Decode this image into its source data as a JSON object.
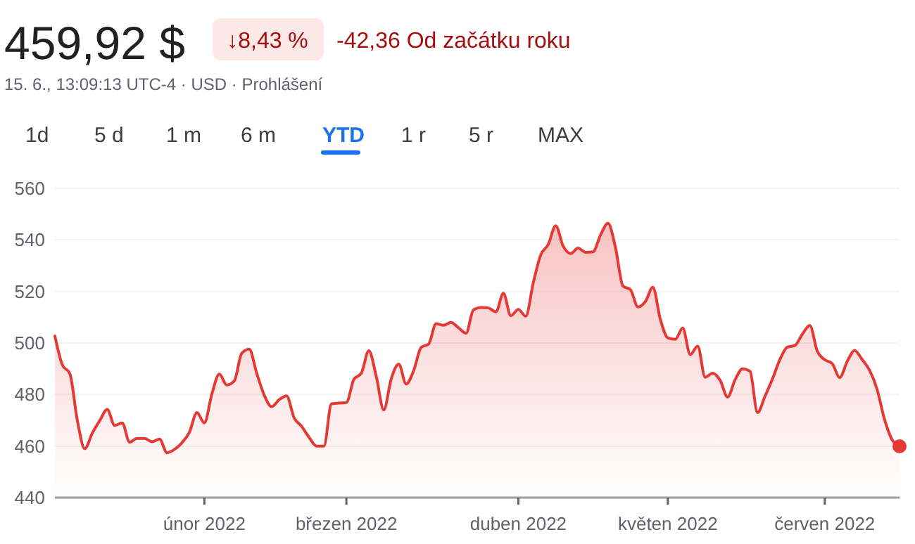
{
  "chart_data": {
    "type": "area",
    "title": "459,92 $",
    "subtitle": "15. 6., 13:09:13 UTC-4 · USD · Prohlášení",
    "annotations": [
      "↓8,43 %",
      "-42,36 Od začátku roku",
      "1d",
      "5 d",
      "1 m",
      "6 m",
      "YTD",
      "1 r",
      "5 r",
      "MAX"
    ],
    "categories": [
      null,
      null,
      null,
      null,
      null,
      null,
      null,
      null,
      null,
      null,
      null,
      null,
      null,
      null,
      null,
      null,
      null,
      null,
      null,
      null,
      "únor 2022",
      null,
      null,
      null,
      null,
      null,
      null,
      null,
      null,
      null,
      null,
      null,
      null,
      null,
      null,
      null,
      null,
      null,
      null,
      "březen 2022",
      null,
      null,
      null,
      null,
      null,
      null,
      null,
      null,
      null,
      null,
      null,
      null,
      null,
      null,
      null,
      null,
      null,
      null,
      null,
      null,
      null,
      null,
      "duben 2022",
      null,
      null,
      null,
      null,
      null,
      null,
      null,
      null,
      null,
      null,
      null,
      null,
      null,
      null,
      null,
      null,
      null,
      null,
      null,
      "květen 2022",
      null,
      null,
      null,
      null,
      null,
      null,
      null,
      null,
      null,
      null,
      null,
      null,
      null,
      null,
      null,
      null,
      null,
      null,
      null,
      null,
      "červen 2022",
      null,
      null,
      null,
      null,
      null,
      null,
      null,
      null,
      null,
      null
    ],
    "series": [
      {
        "color": "#e53935",
        "values": [
          502.7,
          491.5,
          488.1,
          470,
          459,
          465,
          469.9,
          474.2,
          468,
          469,
          461.5,
          463,
          463,
          461.7,
          462.7,
          457.4,
          458.7,
          461.3,
          465.4,
          473,
          469,
          480.2,
          487.9,
          483.7,
          485.3,
          496,
          497.6,
          488.3,
          479.8,
          475.3,
          478,
          479.5,
          471,
          467.7,
          463.4,
          460,
          460,
          476.4,
          476.7,
          476.9,
          485.9,
          488.3,
          497,
          487,
          474,
          486.1,
          491.8,
          484.1,
          489.3,
          498.3,
          499.6,
          507.5,
          506.9,
          508,
          505.9,
          503.8,
          512.9,
          513.8,
          513.6,
          512.1,
          519.3,
          510.6,
          513,
          510.4,
          523.3,
          534.2,
          538.2,
          545.5,
          537.6,
          534.7,
          536.8,
          535.2,
          535.4,
          541.9,
          546.4,
          537,
          522.1,
          520.7,
          514,
          516.1,
          521.6,
          509.2,
          502,
          501.4,
          505.8,
          495.5,
          498.8,
          486.7,
          488.3,
          485.5,
          479,
          485.7,
          490,
          489,
          473,
          479.3,
          486,
          493.6,
          498.4,
          499,
          503.4,
          506.8,
          496.8,
          493.5,
          492,
          486.6,
          492.8,
          497.1,
          493.6,
          489.4,
          482,
          470.3,
          462.5,
          459.9
        ]
      }
    ],
    "ylim": [
      440,
      560
    ],
    "yticks": [
      440,
      460,
      480,
      500,
      520,
      540,
      560
    ],
    "grid": "y"
  }
}
